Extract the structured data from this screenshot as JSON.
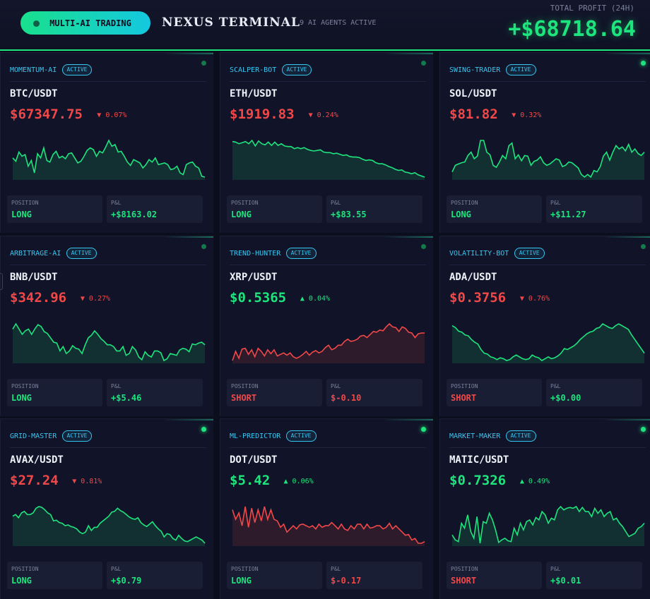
{
  "header": {
    "pill_label": "MULTI-AI TRADING",
    "brand": "NEXUS TERMINAL",
    "agents_active": "9 AI AGENTS ACTIVE",
    "total_profit_label": "TOTAL PROFIT (24H)",
    "total_profit_value": "+$68718.64"
  },
  "labels": {
    "position": "POSITION",
    "pnl": "P&L",
    "active": "ACTIVE"
  },
  "colors": {
    "green": "#1ee47d",
    "red": "#f04848",
    "accent": "#38c6f0"
  },
  "cards": [
    {
      "agent": "MOMENTUM-AI",
      "pair": "BTC/USDT",
      "price": "$67347.75",
      "change": "▼ 0.07%",
      "dir": "down",
      "position": "LONG",
      "pnl": "+$8163.02",
      "chart_color": "green",
      "dot": "dim",
      "series": [
        48,
        44,
        55,
        50,
        52,
        38,
        45,
        30,
        53,
        48,
        60,
        45,
        43,
        52,
        56,
        48,
        50,
        47,
        53,
        54,
        48,
        42,
        44,
        50,
        57,
        60,
        58,
        50,
        56,
        54,
        61,
        69,
        62,
        64,
        55,
        56,
        50,
        43,
        39,
        46,
        44,
        42,
        36,
        40,
        46,
        43,
        48,
        40,
        41,
        42,
        40,
        34,
        35,
        38,
        30,
        28,
        40,
        42,
        43,
        38,
        36,
        26,
        25
      ]
    },
    {
      "agent": "SCALPER-BOT",
      "pair": "ETH/USDT",
      "price": "$1919.83",
      "change": "▼ 0.24%",
      "dir": "down",
      "position": "LONG",
      "pnl": "+$83.55",
      "chart_color": "green",
      "dot": "dim",
      "series": [
        64,
        63,
        60,
        62,
        64,
        60,
        66,
        56,
        65,
        60,
        58,
        63,
        57,
        63,
        57,
        60,
        56,
        55,
        55,
        51,
        53,
        51,
        53,
        50,
        48,
        47,
        48,
        49,
        45,
        44,
        44,
        42,
        43,
        41,
        39,
        40,
        37,
        36,
        36,
        35,
        32,
        30,
        31,
        30,
        26,
        24,
        24,
        22,
        19,
        17,
        14,
        12,
        13,
        9,
        8,
        6,
        8,
        4,
        2,
        0
      ]
    },
    {
      "agent": "SWING-TRADER",
      "pair": "SOL/USDT",
      "price": "$81.82",
      "change": "▼ 0.32%",
      "dir": "down",
      "position": "LONG",
      "pnl": "+$11.27",
      "chart_color": "green",
      "dot": "bright",
      "series": [
        30,
        40,
        42,
        44,
        45,
        55,
        60,
        50,
        54,
        78,
        78,
        60,
        56,
        40,
        37,
        45,
        55,
        50,
        70,
        74,
        50,
        56,
        47,
        55,
        54,
        40,
        46,
        48,
        53,
        44,
        40,
        42,
        46,
        50,
        48,
        38,
        40,
        45,
        44,
        40,
        36,
        26,
        22,
        26,
        22,
        32,
        30,
        38,
        54,
        60,
        48,
        60,
        70,
        65,
        68,
        62,
        72,
        60,
        65,
        58,
        55,
        60
      ]
    },
    {
      "agent": "ARBITRAGE-AI",
      "pair": "BNB/USDT",
      "price": "$342.96",
      "change": "▼ 0.27%",
      "dir": "down",
      "position": "LONG",
      "pnl": "+$5.46",
      "chart_color": "green",
      "dot": "dim",
      "series": [
        50,
        56,
        50,
        44,
        48,
        50,
        44,
        50,
        55,
        53,
        47,
        45,
        40,
        35,
        34,
        25,
        30,
        22,
        25,
        31,
        28,
        27,
        22,
        32,
        40,
        43,
        48,
        44,
        39,
        36,
        32,
        32,
        30,
        25,
        25,
        30,
        20,
        22,
        30,
        26,
        18,
        15,
        24,
        20,
        18,
        25,
        25,
        23,
        14,
        16,
        22,
        21,
        20,
        26,
        28,
        27,
        24,
        33,
        32,
        34,
        35,
        32
      ]
    },
    {
      "agent": "TREND-HUNTER",
      "pair": "XRP/USDT",
      "price": "$0.5365",
      "change": "▲ 0.04%",
      "dir": "up",
      "position": "SHORT",
      "pnl": "$-0.10",
      "chart_color": "red",
      "dot": "dim",
      "series": [
        0,
        12,
        3,
        15,
        16,
        8,
        14,
        5,
        16,
        12,
        6,
        14,
        9,
        14,
        6,
        8,
        10,
        7,
        10,
        5,
        3,
        5,
        8,
        12,
        7,
        11,
        13,
        10,
        12,
        17,
        20,
        14,
        16,
        20,
        20,
        25,
        28,
        25,
        26,
        28,
        32,
        33,
        30,
        34,
        38,
        37,
        40,
        39,
        44,
        48,
        44,
        43,
        38,
        44,
        42,
        37,
        36,
        30,
        35,
        36,
        36
      ]
    },
    {
      "agent": "VOLATILITY-BOT",
      "pair": "ADA/USDT",
      "price": "$0.3756",
      "change": "▼ 0.76%",
      "dir": "down",
      "position": "SHORT",
      "pnl": "+$0.00",
      "chart_color": "green",
      "dot": "dim",
      "series": [
        40,
        38,
        34,
        33,
        30,
        29,
        25,
        22,
        20,
        14,
        10,
        9,
        6,
        5,
        3,
        5,
        4,
        2,
        3,
        6,
        8,
        6,
        4,
        3,
        4,
        8,
        6,
        5,
        2,
        4,
        6,
        4,
        5,
        7,
        10,
        15,
        14,
        16,
        18,
        21,
        25,
        28,
        31,
        33,
        34,
        37,
        38,
        42,
        40,
        38,
        37,
        40,
        42,
        40,
        38,
        36,
        30,
        25,
        20,
        15,
        10
      ]
    },
    {
      "agent": "GRID-MASTER",
      "pair": "AVAX/USDT",
      "price": "$27.24",
      "change": "▼ 0.81%",
      "dir": "down",
      "position": "LONG",
      "pnl": "+$0.79",
      "chart_color": "green",
      "dot": "bright",
      "series": [
        38,
        40,
        36,
        42,
        44,
        40,
        40,
        42,
        48,
        50,
        49,
        46,
        42,
        40,
        32,
        33,
        30,
        29,
        26,
        27,
        25,
        24,
        22,
        18,
        16,
        18,
        26,
        20,
        24,
        24,
        29,
        32,
        35,
        38,
        43,
        44,
        48,
        45,
        43,
        40,
        37,
        35,
        34,
        36,
        30,
        27,
        25,
        28,
        31,
        26,
        22,
        19,
        12,
        16,
        15,
        10,
        8,
        14,
        10,
        7,
        6,
        8,
        10,
        12,
        10,
        8,
        4
      ]
    },
    {
      "agent": "ML-PREDICTOR",
      "pair": "DOT/USDT",
      "price": "$5.42",
      "change": "▲ 0.06%",
      "dir": "up",
      "position": "LONG",
      "pnl": "$-0.17",
      "chart_color": "red",
      "dot": "bright",
      "series": [
        44,
        32,
        40,
        24,
        48,
        22,
        46,
        28,
        44,
        30,
        48,
        32,
        44,
        32,
        30,
        22,
        26,
        16,
        20,
        24,
        20,
        25,
        26,
        24,
        22,
        24,
        20,
        26,
        22,
        24,
        24,
        28,
        24,
        20,
        26,
        20,
        18,
        24,
        20,
        26,
        26,
        20,
        26,
        21,
        22,
        24,
        24,
        20,
        22,
        27,
        20,
        24,
        20,
        16,
        12,
        13,
        6,
        8,
        2,
        2,
        4
      ]
    },
    {
      "agent": "MARKET-MAKER",
      "pair": "MATIC/USDT",
      "price": "$0.7326",
      "change": "▲ 0.49%",
      "dir": "up",
      "position": "SHORT",
      "pnl": "+$0.01",
      "chart_color": "green",
      "dot": "bright",
      "series": [
        12,
        6,
        4,
        26,
        20,
        36,
        16,
        8,
        34,
        2,
        28,
        26,
        38,
        30,
        18,
        3,
        6,
        8,
        5,
        4,
        20,
        12,
        26,
        18,
        28,
        30,
        24,
        33,
        30,
        40,
        36,
        26,
        32,
        30,
        42,
        46,
        42,
        44,
        45,
        44,
        46,
        40,
        45,
        40,
        40,
        34,
        44,
        38,
        42,
        34,
        38,
        40,
        30,
        32,
        26,
        22,
        16,
        10,
        12,
        14,
        20,
        22,
        26
      ]
    }
  ]
}
